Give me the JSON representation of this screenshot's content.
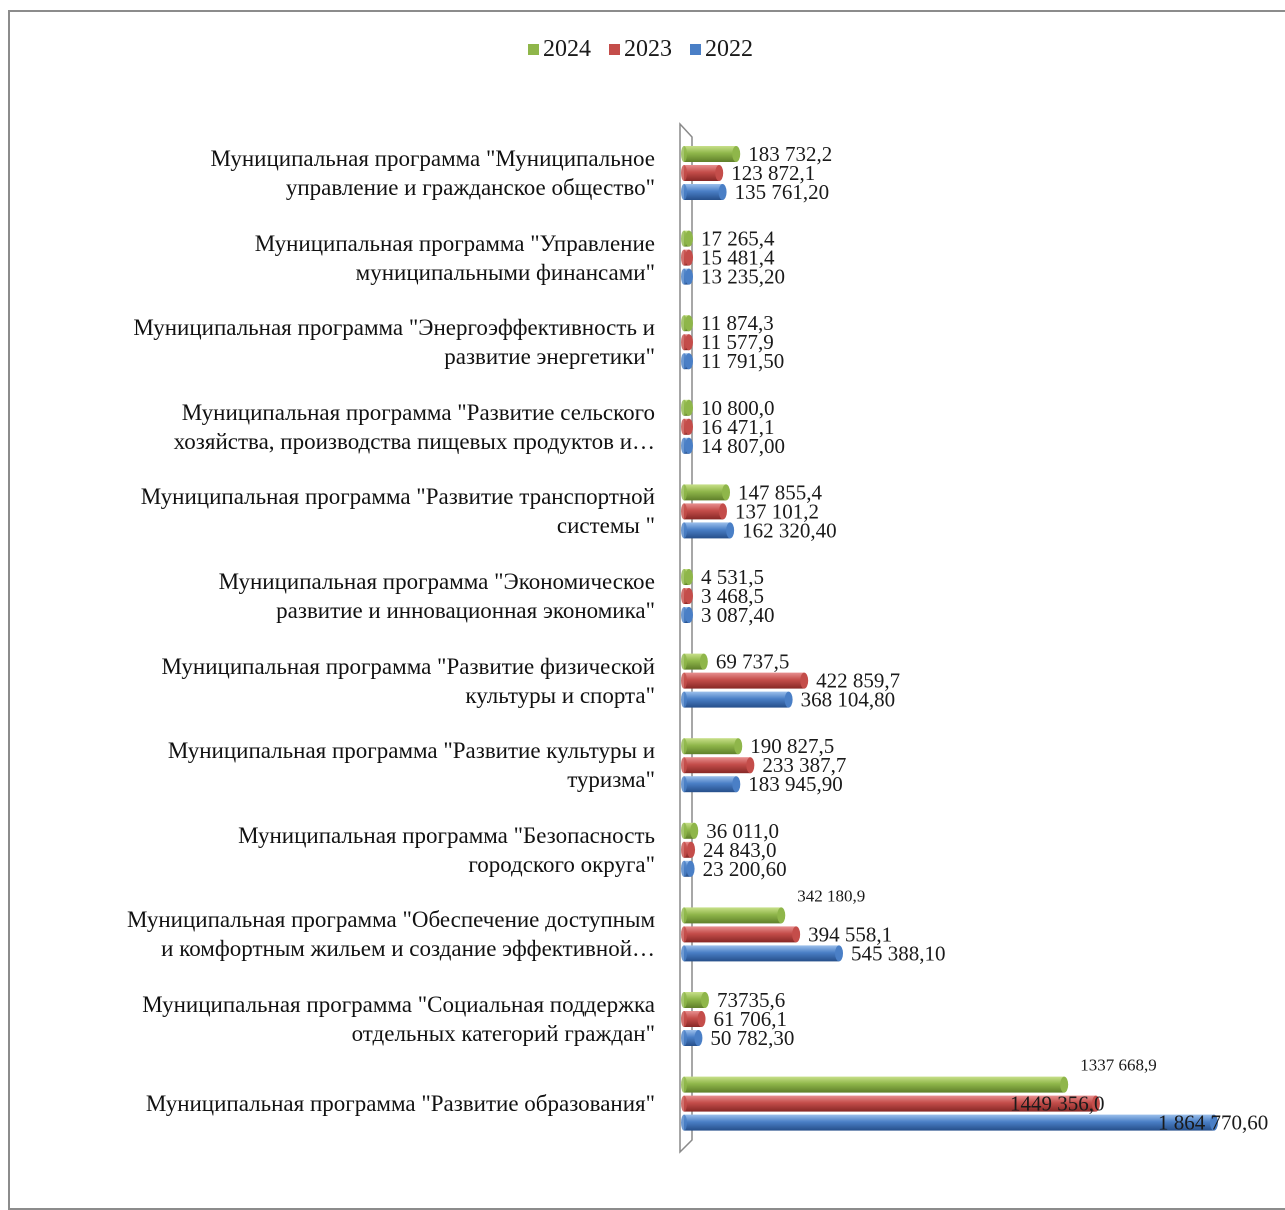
{
  "chart_data": {
    "type": "bar",
    "orientation": "horizontal",
    "legend_position": "top",
    "categories": [
      "Муниципальная программа \"Муниципальное управление и гражданское общество\"",
      "Муниципальная программа \"Управление муниципальными финансами\"",
      "Муниципальная программа \"Энергоэффективность и развитие энергетики\"",
      "Муниципальная программа \"Развитие сельского хозяйства, производства пищевых продуктов и…",
      "Муниципальная программа \"Развитие транспортной системы \"",
      "Муниципальная программа \"Экономическое развитие и инновационная экономика\"",
      "Муниципальная программа \"Развитие физической культуры и спорта\"",
      "Муниципальная программа \"Развитие культуры и туризма\"",
      "Муниципальная программа \"Безопасность городского округа\"",
      "Муниципальная программа \"Обеспечение доступным и комфортным жильем и создание эффективной…",
      "Муниципальная программа \"Социальная поддержка отдельных категорий граждан\"",
      "Муниципальная программа \"Развитие образования\""
    ],
    "category_lines": [
      [
        "Муниципальная программа \"Муниципальное",
        "управление и гражданское общество\""
      ],
      [
        "Муниципальная программа \"Управление",
        "муниципальными финансами\""
      ],
      [
        "Муниципальная программа \"Энергоэффективность и",
        "развитие энергетики\""
      ],
      [
        "Муниципальная программа \"Развитие сельского",
        "хозяйства, производства пищевых продуктов и…"
      ],
      [
        "Муниципальная программа \"Развитие транспортной",
        "системы \""
      ],
      [
        "Муниципальная программа \"Экономическое",
        "развитие и инновационная экономика\""
      ],
      [
        "Муниципальная программа \"Развитие физической",
        "культуры и спорта\""
      ],
      [
        "Муниципальная программа \"Развитие культуры и",
        "туризма\""
      ],
      [
        "Муниципальная программа \"Безопасность",
        "городского округа\""
      ],
      [
        "Муниципальная программа \"Обеспечение доступным",
        "и комфортным жильем и создание эффективной…"
      ],
      [
        "Муниципальная программа \"Социальная поддержка",
        "отдельных категорий граждан\""
      ],
      [
        "Муниципальная программа \"Развитие образования\""
      ]
    ],
    "series": [
      {
        "name": "2024",
        "color": "#8fb64a",
        "values": [
          183732.2,
          17265.4,
          11874.3,
          10800.0,
          147855.4,
          4531.5,
          69737.5,
          190827.5,
          36011.0,
          342180.9,
          73735.6,
          1337668.9
        ],
        "labels": [
          "183 732,2",
          "17 265,4",
          "11 874,3",
          "10 800,0",
          "147 855,4",
          "4 531,5",
          "69 737,5",
          "190 827,5",
          "36 011,0",
          "342 180,9",
          "73735,6",
          "1337 668,9"
        ]
      },
      {
        "name": "2023",
        "color": "#c44d4a",
        "values": [
          123872.1,
          15481.4,
          11577.9,
          16471.1,
          137101.2,
          3468.5,
          422859.7,
          233387.7,
          24843.0,
          394558.1,
          61706.1,
          1449356.0
        ],
        "labels": [
          "123 872,1",
          "15 481,4",
          "11 577,9",
          "16 471,1",
          "137 101,2",
          "3 468,5",
          "422 859,7",
          "233 387,7",
          "24 843,0",
          "394 558,1",
          "61 706,1",
          "1449 356,0"
        ]
      },
      {
        "name": "2022",
        "color": "#4a7fc6",
        "values": [
          135761.2,
          13235.2,
          11791.5,
          14807.0,
          162320.4,
          3087.4,
          368104.8,
          183945.9,
          23200.6,
          545388.1,
          50782.3,
          1864770.6
        ],
        "labels": [
          "135 761,20",
          "13 235,20",
          "11 791,50",
          "14 807,00",
          "162 320,40",
          "3 087,40",
          "368 104,80",
          "183 945,90",
          "23 200,60",
          "545 388,10",
          "50 782,30",
          "1 864 770,60"
        ]
      }
    ],
    "legend": [
      "2024",
      "2023",
      "2022"
    ]
  }
}
